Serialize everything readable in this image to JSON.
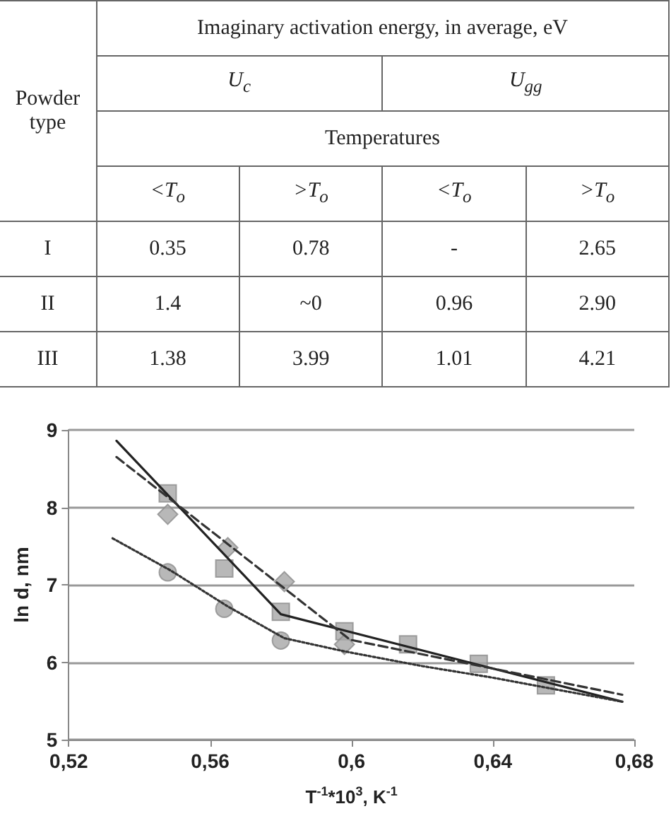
{
  "chart_data": [
    {
      "type": "other",
      "title": "Imaginary activation energy, in average, eV",
      "ylabel": "Powder type",
      "subtitle": "Temperatures",
      "annotations": [
        "U$_{c}$",
        "U$_{gg}$"
      ],
      "categories": [
        "<T$_{o}$",
        ">T$_{o}$",
        "<T$_{o}$",
        ">T$_{o}$"
      ],
      "y_categories": [
        "I",
        "II",
        "III"
      ],
      "cell_labels": [
        [
          "0.35",
          "0.78",
          "-",
          "2.65"
        ],
        [
          "1.4",
          "~0",
          "0.96",
          "2.90"
        ],
        [
          "1.38",
          "3.99",
          "1.01",
          "4.21"
        ]
      ]
    },
    {
      "type": "line",
      "xlabel": "T$^{-1}$*10$^{3}$, K$^{-1}$",
      "ylabel": "ln d, nm",
      "xlim": [
        0.52,
        0.68
      ],
      "ylim": [
        5,
        9
      ],
      "xticks": [
        {
          "value": 0.52,
          "label": "0,52"
        },
        {
          "value": 0.56,
          "label": "0,56"
        },
        {
          "value": 0.6,
          "label": "0,6"
        },
        {
          "value": 0.64,
          "label": "0,64"
        },
        {
          "value": 0.68,
          "label": "0,68"
        }
      ],
      "yticks": [
        5,
        6,
        7,
        8,
        9
      ],
      "grid": "y",
      "series": [
        {
          "type": "scatter",
          "marker": "square",
          "color": "#a6a6a6",
          "x": [
            0.548,
            0.564,
            0.58,
            0.598,
            0.616,
            0.636,
            0.655
          ],
          "values": [
            8.18,
            7.21,
            6.65,
            6.4,
            6.23,
            5.98,
            5.7
          ]
        },
        {
          "type": "scatter",
          "marker": "diamond",
          "color": "#a6a6a6",
          "x": [
            0.548,
            0.565,
            0.581,
            0.598
          ],
          "values": [
            7.91,
            7.48,
            7.04,
            6.23
          ]
        },
        {
          "type": "scatter",
          "marker": "circle",
          "color": "#a6a6a6",
          "x": [
            0.548,
            0.564,
            0.58
          ],
          "values": [
            7.16,
            6.69,
            6.28
          ]
        },
        {
          "type": "line",
          "marker": "none",
          "line_style": "solid",
          "color": "#222222",
          "x": [
            0.5335,
            0.58,
            0.6766
          ],
          "values": [
            8.86,
            6.62,
            5.49
          ]
        },
        {
          "type": "line",
          "marker": "none",
          "line_style": "dashed",
          "color": "#333333",
          "x": [
            0.5335,
            0.5996,
            0.6766
          ],
          "values": [
            8.65,
            6.29,
            5.58
          ]
        },
        {
          "type": "line",
          "marker": "none",
          "line_style": "dotted",
          "color": "#333333",
          "x": [
            0.5324,
            0.549,
            0.565,
            0.581,
            0.598,
            0.62,
            0.64,
            0.66,
            0.6766
          ],
          "values": [
            7.6,
            7.18,
            6.72,
            6.31,
            6.14,
            5.95,
            5.8,
            5.63,
            5.49
          ]
        }
      ]
    }
  ]
}
